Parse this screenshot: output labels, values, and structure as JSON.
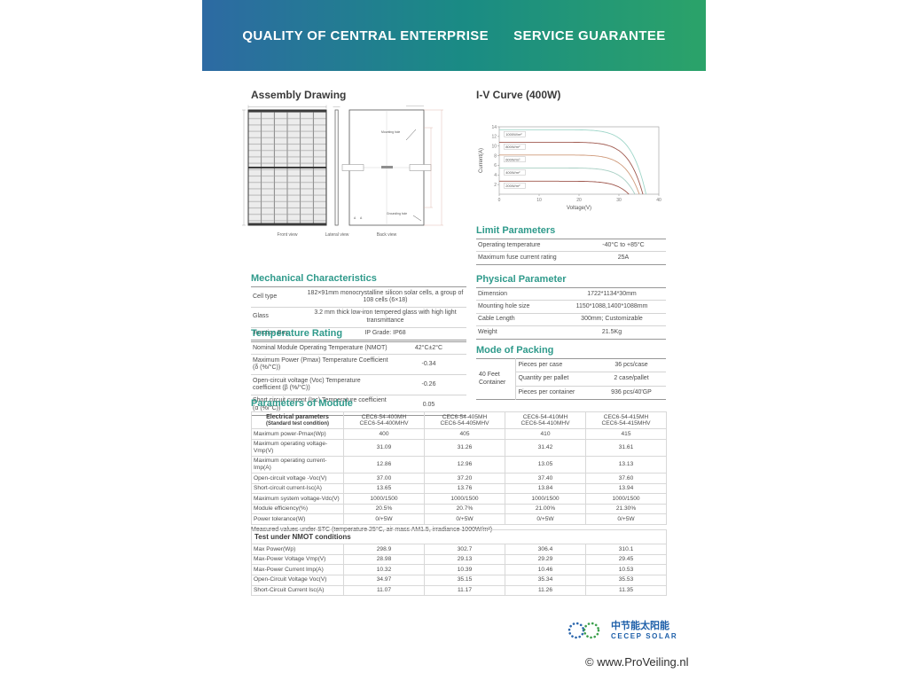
{
  "banner": {
    "left": "QUALITY OF CENTRAL ENTERPRISE",
    "right": "SERVICE GUARANTEE",
    "gradient_start": "#2d6aa3",
    "gradient_end": "#2ba369"
  },
  "assembly": {
    "title": "Assembly Drawing",
    "views": [
      "Front view",
      "Lateral view",
      "Back view"
    ],
    "mounting_hole_label": "Mounting hole",
    "grounding_hole_label": "Grounding hole",
    "section_marker": "A"
  },
  "chart_data": {
    "type": "line",
    "title": "I-V Curve (400W)",
    "xlabel": "Voltage(V)",
    "ylabel": "Current(A)",
    "xlim": [
      0,
      40
    ],
    "ylim": [
      0,
      14
    ],
    "xticks": [
      0,
      10,
      20,
      30,
      40
    ],
    "yticks": [
      2,
      4,
      6,
      8,
      10,
      12,
      14
    ],
    "grid": false,
    "legend_position": "labels-on-curves",
    "series": [
      {
        "name": "1000W/m²",
        "isc": 13.4,
        "voc": 36.8,
        "color": "#9fd6c9"
      },
      {
        "name": "800W/m²",
        "isc": 10.8,
        "voc": 36.0,
        "color": "#a05a50"
      },
      {
        "name": "600W/m²",
        "isc": 8.15,
        "voc": 35.1,
        "color": "#cf9a7a"
      },
      {
        "name": "400W/m²",
        "isc": 5.45,
        "voc": 34.0,
        "color": "#a7cfc3"
      },
      {
        "name": "200W/m²",
        "isc": 2.7,
        "voc": 32.5,
        "color": "#9e564c"
      }
    ]
  },
  "limit_parameters": {
    "title": "Limit Parameters",
    "rows": [
      [
        "Operating temperature",
        "-40°C to +85°C"
      ],
      [
        "Maximum fuse current rating",
        "25A"
      ]
    ]
  },
  "mechanical": {
    "title": "Mechanical Characteristics",
    "rows": [
      [
        "Cell type",
        "182×91mm monocrystalline silicon solar cells, a group of 108 cells (6×18)"
      ],
      [
        "Glass",
        "3.2 mm thick low-iron tempered glass with high light transmittance"
      ],
      [
        "Junction Box",
        "IP Grade: IP68"
      ]
    ]
  },
  "physical": {
    "title": "Physical Parameter",
    "rows": [
      [
        "Dimension",
        "1722*1134*30mm"
      ],
      [
        "Mounting hole size",
        "1150*1088,1400*1088mm"
      ],
      [
        "Cable Length",
        "300mm;  Customizable"
      ],
      [
        "Weight",
        "21.5Kg"
      ]
    ]
  },
  "temperature": {
    "title": "Temperature Rating",
    "rows": [
      [
        "Nominal Module Operating Temperature (NMOT)",
        "42°C±2°C"
      ],
      [
        "Maximum Power (Pmax) Temperature Coefficient (δ (%/°C))",
        "-0.34"
      ],
      [
        "Open-circuit voltage (Voc) Temperature coefficient (β (%/°C))",
        "-0.26"
      ],
      [
        "Short circuit current (Isc) Temperature coefficient (α (%/°C))",
        "0.05"
      ]
    ]
  },
  "packing": {
    "title": "Mode of Packing",
    "container": "40 Feet Container",
    "rows": [
      [
        "Pieces per case",
        "36 pcs/case"
      ],
      [
        "Quantity per pallet",
        "2 case/pallet"
      ],
      [
        "Pieces per container",
        "936 pcs/40'GP"
      ]
    ]
  },
  "module_params": {
    "title": "Parameters of Module",
    "header_line1": "Electrical parameters",
    "header_line2": "(Standard test condition)",
    "models": [
      [
        "CEC6-54-400MH",
        "CEC6-54-400MHV"
      ],
      [
        "CEC6-54-405MH",
        "CEC6-54-405MHV"
      ],
      [
        "CEC6-54-410MH",
        "CEC6-54-410MHV"
      ],
      [
        "CEC6-54-415MH",
        "CEC6-54-415MHV"
      ]
    ],
    "rows": [
      {
        "label": "Maximum power-Pmax(Wp)",
        "values": [
          "400",
          "405",
          "410",
          "415"
        ]
      },
      {
        "label": "Maximum operating voltage-Vmp(V)",
        "values": [
          "31.09",
          "31.26",
          "31.42",
          "31.61"
        ]
      },
      {
        "label": "Maximum operating current-Imp(A)",
        "values": [
          "12.86",
          "12.96",
          "13.05",
          "13.13"
        ]
      },
      {
        "label": "Open-circuit voltage -Voc(V)",
        "values": [
          "37.00",
          "37.20",
          "37.40",
          "37.60"
        ]
      },
      {
        "label": "Short-circuit current-Isc(A)",
        "values": [
          "13.65",
          "13.76",
          "13.84",
          "13.94"
        ]
      },
      {
        "label": "Maximum system voltage-Vdc(V)",
        "values": [
          "1000/1500",
          "1000/1500",
          "1000/1500",
          "1000/1500"
        ]
      },
      {
        "label": "Module efficiency(%)",
        "values": [
          "20.5%",
          "20.7%",
          "21.00%",
          "21.30%"
        ]
      },
      {
        "label": "Power tolerance(W)",
        "values": [
          "0/+5W",
          "0/+5W",
          "0/+5W",
          "0/+5W"
        ]
      }
    ],
    "footnote": "Measured values under STC (temperature 25°C, air mass AM1.5, irradiance 1000W/m²)"
  },
  "nmot": {
    "title": "Test under NMOT conditions",
    "rows": [
      {
        "label": "Max Power(Wp)",
        "values": [
          "298.9",
          "302.7",
          "306.4",
          "310.1"
        ]
      },
      {
        "label": "Max-Power Voltage Vmp(V)",
        "values": [
          "28.98",
          "29.13",
          "29.29",
          "29.45"
        ]
      },
      {
        "label": "Max-Power Current Imp(A)",
        "values": [
          "10.32",
          "10.39",
          "10.46",
          "10.53"
        ]
      },
      {
        "label": "Open-Circuit Voltage Voc(V)",
        "values": [
          "34.97",
          "35.15",
          "35.34",
          "35.53"
        ]
      },
      {
        "label": "Short-Circuit Current Isc(A)",
        "values": [
          "11.07",
          "11.17",
          "11.26",
          "11.35"
        ]
      }
    ]
  },
  "footer": {
    "logo_cn": "中节能太阳能",
    "logo_en": "CECEP SOLAR",
    "copyright": "© www.ProVeiling.nl"
  }
}
